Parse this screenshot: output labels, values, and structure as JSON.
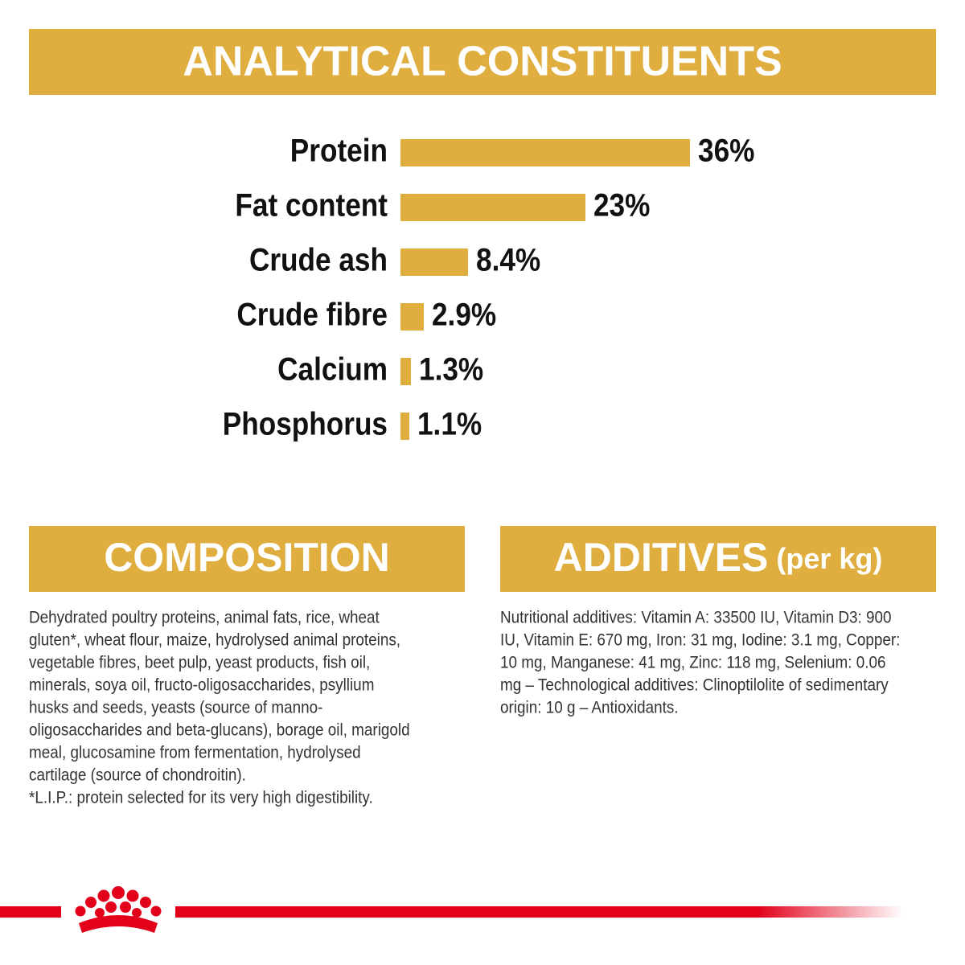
{
  "chart_data": {
    "type": "bar",
    "title": "ANALYTICAL CONSTITUENTS",
    "categories": [
      "Protein",
      "Fat content",
      "Crude ash",
      "Crude fibre",
      "Calcium",
      "Phosphorus"
    ],
    "values": [
      36,
      23,
      8.4,
      2.9,
      1.3,
      1.1
    ],
    "value_labels": [
      "36%",
      "23%",
      "8.4%",
      "2.9%",
      "1.3%",
      "1.1%"
    ],
    "color": "#dfae3f"
  },
  "composition": {
    "title": "COMPOSITION",
    "lines": [
      "Dehydrated poultry proteins, animal fats, rice, wheat",
      "gluten*, wheat flour, maize, hydrolysed animal proteins,",
      "vegetable fibres, beet pulp, yeast products, fish oil,",
      "minerals, soya oil, fructo-oligosaccharides, psyllium",
      "husks and seeds, yeasts (source of manno-",
      "oligosaccharides and beta-glucans), borage oil, marigold",
      "meal, glucosamine from fermentation, hydrolysed",
      "cartilage (source of chondroitin).",
      "*L.I.P.: protein selected for its very high digestibility."
    ]
  },
  "additives": {
    "title": "ADDITIVES",
    "subtitle": "(per kg)",
    "lines": [
      "Nutritional additives: Vitamin A: 33500 IU, Vitamin D3: 900",
      "IU, Vitamin E: 670 mg, Iron: 31 mg, Iodine: 3.1 mg, Copper:",
      "10 mg, Manganese: 41 mg, Zinc: 118 mg, Selenium: 0.06",
      "mg – Technological additives: Clinoptilolite of sedimentary",
      "origin: 10 g – Antioxidants."
    ]
  }
}
